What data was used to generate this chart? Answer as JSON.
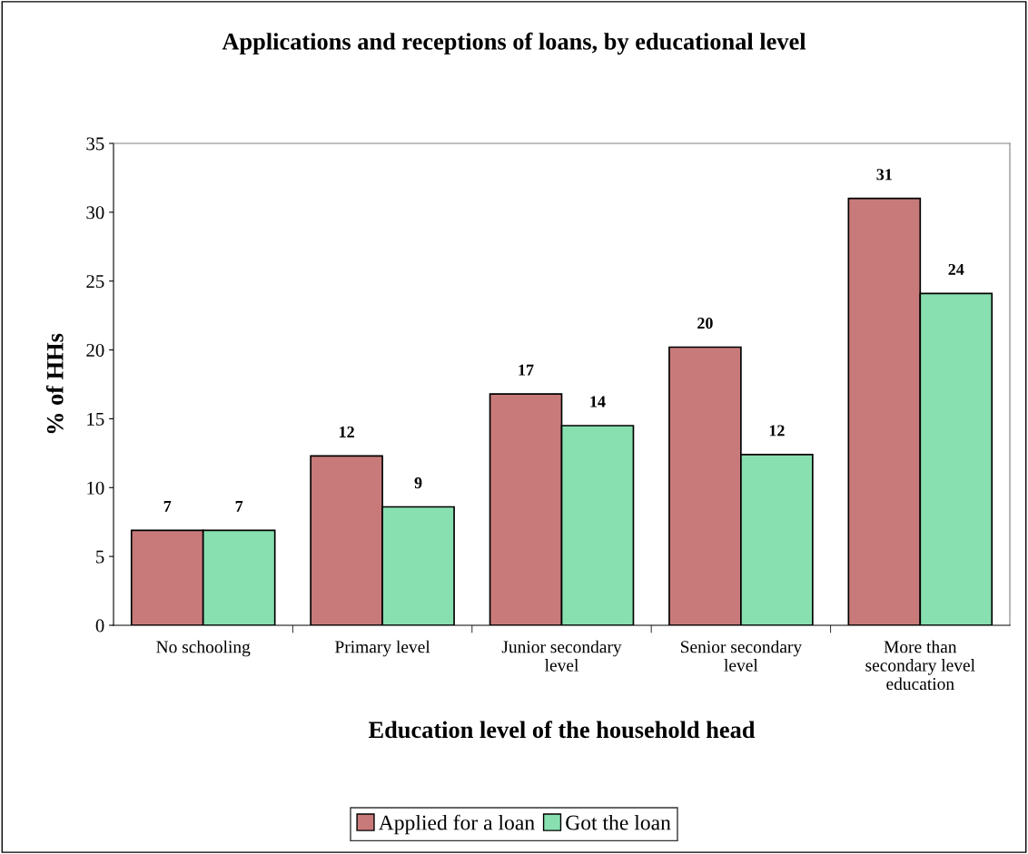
{
  "chart_data": {
    "type": "bar",
    "title": "Applications and receptions of loans, by educational level",
    "xlabel": "Education level of the household head",
    "ylabel": "% of HHs",
    "categories": [
      "No schooling",
      "Primary level",
      "Junior secondary\nlevel",
      "Senior secondary\nlevel",
      "More than\nsecondary level\neducation"
    ],
    "series": [
      {
        "name": "Applied for a loan",
        "color": "#c87a7a",
        "values": [
          6.9,
          12.3,
          16.8,
          20.2,
          31.0
        ],
        "value_labels": [
          "7",
          "12",
          "17",
          "20",
          "31"
        ]
      },
      {
        "name": "Got the loan",
        "color": "#88e0b0",
        "values": [
          6.9,
          8.6,
          14.5,
          12.4,
          24.1
        ],
        "value_labels": [
          "7",
          "9",
          "14",
          "12",
          "24"
        ]
      }
    ],
    "ylim": [
      0,
      35
    ],
    "yticks": [
      0,
      5,
      10,
      15,
      20,
      25,
      30,
      35
    ],
    "grid": false,
    "legend": "bottom"
  }
}
